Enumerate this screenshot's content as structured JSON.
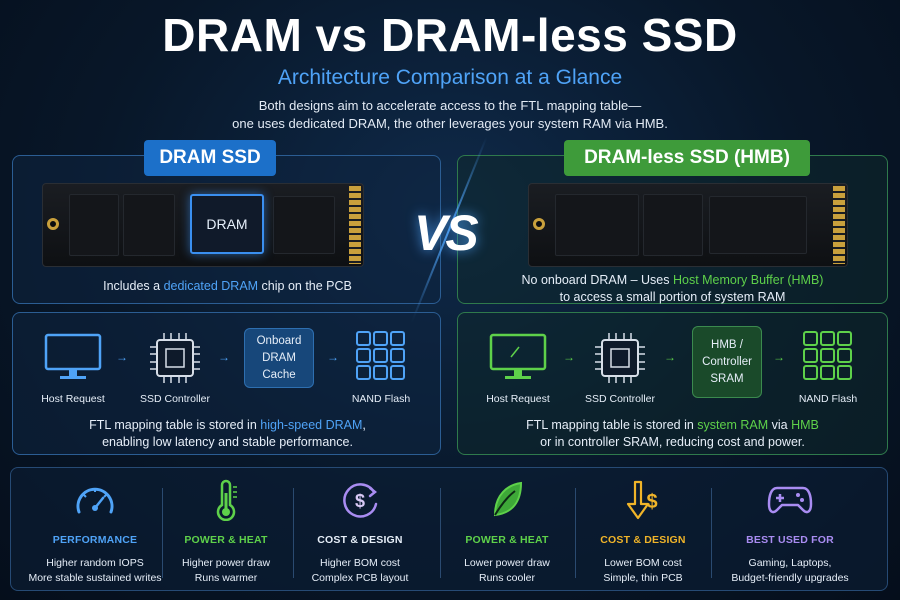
{
  "header": {
    "title": "DRAM vs DRAM-less SSD",
    "subtitle": "Architecture Comparison at a Glance",
    "desc_line1": "Both designs aim to accelerate access to the FTL mapping table—",
    "desc_line2": "one uses dedicated DRAM, the other leverages your system RAM via HMB."
  },
  "vs_label": "VS",
  "dram": {
    "pill": "DRAM SSD",
    "chip_label": "DRAM",
    "caption_pre": "Includes a ",
    "caption_hl": "dedicated DRAM",
    "caption_post": " chip on the PCB",
    "flow": {
      "host": "Host Request",
      "controller": "SSD Controller",
      "cache_line1": "Onboard",
      "cache_line2": "DRAM Cache",
      "nand": "NAND Flash"
    },
    "note_pre": "FTL mapping table is stored in ",
    "note_hl": "high-speed DRAM",
    "note_post": ",",
    "note_line2": "enabling low latency and stable performance.",
    "accent": "#4fa3f7"
  },
  "dramless": {
    "pill": "DRAM-less SSD (HMB)",
    "caption_pre": "No onboard DRAM – Uses ",
    "caption_hl": "Host Memory Buffer (HMB)",
    "caption_line2": "to access a small portion of system RAM",
    "flow": {
      "host": "Host Request",
      "controller": "SSD Controller",
      "cache_line1": "HMB /",
      "cache_line2": "Controller",
      "cache_line3": "SRAM",
      "nand": "NAND Flash"
    },
    "note_pre": "FTL mapping table is stored in ",
    "note_hl": "system RAM",
    "note_mid": " via ",
    "note_hl2": "HMB",
    "note_line2": "or in controller SRAM, reducing cost and power.",
    "accent": "#5ed14a"
  },
  "features": [
    {
      "icon": "speedometer-icon",
      "title": "PERFORMANCE",
      "line1": "Higher random IOPS",
      "line2": "More stable sustained writes",
      "color": "#4fa3f7"
    },
    {
      "icon": "thermometer-icon",
      "title": "POWER & HEAT",
      "line1": "Higher power draw",
      "line2": "Runs warmer",
      "color": "#5ed14a"
    },
    {
      "icon": "dollar-cycle-icon",
      "title": "COST & DESIGN",
      "line1": "Higher BOM cost",
      "line2": "Complex PCB layout",
      "color": "#d8c9f5"
    },
    {
      "icon": "leaf-icon",
      "title": "POWER & HEAT",
      "line1": "Lower power draw",
      "line2": "Runs cooler",
      "color": "#5ed14a"
    },
    {
      "icon": "dollar-down-icon",
      "title": "COST & DESIGN",
      "line1": "Lower BOM cost",
      "line2": "Simple, thin PCB",
      "color": "#f0b429"
    },
    {
      "icon": "gamepad-icon",
      "title": "BEST USED FOR",
      "line1": "Gaming, Laptops,",
      "line2": "Budget-friendly upgrades",
      "color": "#a98cf2"
    }
  ]
}
